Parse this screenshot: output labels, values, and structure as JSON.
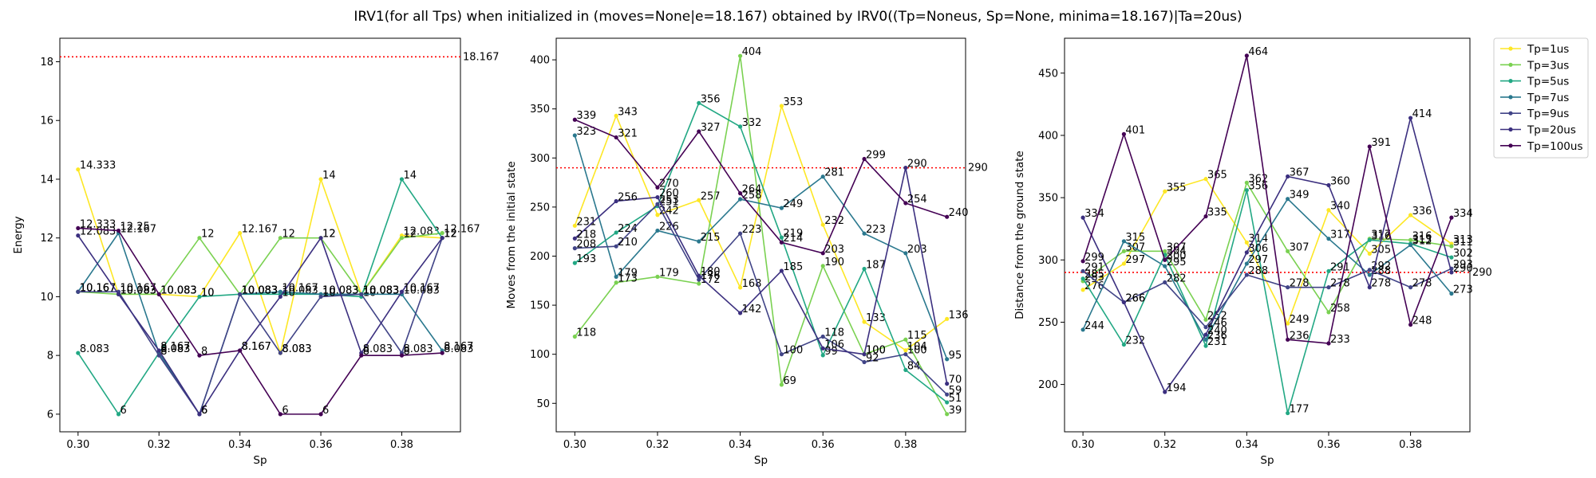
{
  "figure": {
    "title": "IRV1(for all Tps) when initialized in (moves=None|e=18.167) obtained by IRV0((Tp=Noneus, Sp=None, minima=18.167)|Ta=20us)"
  },
  "legend": {
    "placement": "outside-right",
    "entries": [
      "Tp=1us",
      "Tp=3us",
      "Tp=5us",
      "Tp=7us",
      "Tp=9us",
      "Tp=20us",
      "Tp=100us"
    ]
  },
  "colors": {
    "Tp=1us": "#fde725",
    "Tp=3us": "#7ad151",
    "Tp=5us": "#22a884",
    "Tp=7us": "#2a788e",
    "Tp=9us": "#414487",
    "Tp=20us": "#3b2f7f",
    "Tp=100us": "#440154",
    "reference_line": "#ff0000"
  },
  "chart_data": [
    {
      "type": "line",
      "title": "",
      "xlabel": "Sp",
      "ylabel": "Energy",
      "x": [
        0.3,
        0.31,
        0.32,
        0.33,
        0.34,
        0.35,
        0.36,
        0.37,
        0.38,
        0.39
      ],
      "xlim": [
        0.2955,
        0.3945
      ],
      "ylim": [
        5.4,
        18.8
      ],
      "xticks": [
        "0.30",
        "0.32",
        "0.34",
        "0.36",
        "0.38"
      ],
      "yticks": [
        "6",
        "8",
        "10",
        "12",
        "14",
        "16",
        "18"
      ],
      "reference_line": {
        "value": 18.167,
        "label": "18.167",
        "style": "dotted"
      },
      "grid": false,
      "series": [
        {
          "name": "Tp=1us",
          "values": [
            14.333,
            10.083,
            10.083,
            10.0,
            12.167,
            8.083,
            14.0,
            10.083,
            12.083,
            12.0
          ]
        },
        {
          "name": "Tp=3us",
          "values": [
            10.167,
            10.083,
            10.083,
            12.0,
            10.083,
            12.0,
            12.0,
            10.083,
            12.0,
            12.167
          ]
        },
        {
          "name": "Tp=5us",
          "values": [
            8.083,
            6.0,
            8.083,
            10.0,
            10.083,
            10.083,
            10.083,
            10.0,
            14.0,
            12.0
          ]
        },
        {
          "name": "Tp=7us",
          "values": [
            10.167,
            12.167,
            8.083,
            6.0,
            10.083,
            10.167,
            10.083,
            10.083,
            10.083,
            8.167
          ]
        },
        {
          "name": "Tp=9us",
          "values": [
            10.167,
            10.167,
            8.0,
            6.0,
            10.083,
            8.083,
            10.0,
            10.083,
            8.083,
            12.0
          ]
        },
        {
          "name": "Tp=20us",
          "values": [
            12.083,
            10.083,
            8.167,
            6.0,
            8.167,
            10.0,
            12.0,
            8.083,
            10.167,
            12.0
          ]
        },
        {
          "name": "Tp=100us",
          "values": [
            12.333,
            12.25,
            10.083,
            8.0,
            8.167,
            6.0,
            6.0,
            8.0,
            8.0,
            8.083
          ]
        }
      ]
    },
    {
      "type": "line",
      "title": "",
      "xlabel": "Sp",
      "ylabel": "Moves from the initial state",
      "x": [
        0.3,
        0.31,
        0.32,
        0.33,
        0.34,
        0.35,
        0.36,
        0.37,
        0.38,
        0.39
      ],
      "xlim": [
        0.2955,
        0.3945
      ],
      "ylim": [
        21,
        422
      ],
      "xticks": [
        "0.30",
        "0.32",
        "0.34",
        "0.36",
        "0.38"
      ],
      "yticks": [
        "50",
        "100",
        "150",
        "200",
        "250",
        "300",
        "350",
        "400"
      ],
      "reference_line": {
        "value": 290,
        "label": "290",
        "style": "dotted"
      },
      "grid": false,
      "series": [
        {
          "name": "Tp=1us",
          "values": [
            231,
            343,
            242,
            257,
            168,
            353,
            232,
            133,
            104,
            136
          ]
        },
        {
          "name": "Tp=3us",
          "values": [
            118,
            173,
            179,
            172,
            404,
            69,
            190,
            100,
            115,
            39
          ]
        },
        {
          "name": "Tp=5us",
          "values": [
            193,
            224,
            251,
            356,
            332,
            219,
            99,
            187,
            84,
            51
          ]
        },
        {
          "name": "Tp=7us",
          "values": [
            323,
            179,
            226,
            215,
            258,
            249,
            281,
            223,
            203,
            95
          ]
        },
        {
          "name": "Tp=9us",
          "values": [
            208,
            210,
            253,
            176,
            223,
            100,
            118,
            92,
            100,
            59
          ]
        },
        {
          "name": "Tp=20us",
          "values": [
            218,
            256,
            260,
            180,
            142,
            185,
            106,
            100,
            290,
            70
          ]
        },
        {
          "name": "Tp=100us",
          "values": [
            339,
            321,
            270,
            327,
            264,
            214,
            203,
            299,
            254,
            240
          ]
        }
      ]
    },
    {
      "type": "line",
      "title": "",
      "xlabel": "Sp",
      "ylabel": "Distance from the ground state",
      "x": [
        0.3,
        0.31,
        0.32,
        0.33,
        0.34,
        0.35,
        0.36,
        0.37,
        0.38,
        0.39
      ],
      "xlim": [
        0.2955,
        0.3945
      ],
      "ylim": [
        162,
        478
      ],
      "xticks": [
        "0.30",
        "0.32",
        "0.34",
        "0.36",
        "0.38"
      ],
      "yticks": [
        "200",
        "250",
        "300",
        "350",
        "400",
        "450"
      ],
      "reference_line": {
        "value": 290,
        "label": "290",
        "style": "dotted"
      },
      "grid": false,
      "series": [
        {
          "name": "Tp=1us",
          "values": [
            276,
            297,
            355,
            365,
            314,
            249,
            340,
            305,
            336,
            313
          ]
        },
        {
          "name": "Tp=3us",
          "values": [
            283,
            307,
            307,
            252,
            362,
            307,
            258,
            317,
            316,
            311
          ]
        },
        {
          "name": "Tp=5us",
          "values": [
            285,
            232,
            304,
            231,
            356,
            177,
            291,
            316,
            313,
            302
          ]
        },
        {
          "name": "Tp=7us",
          "values": [
            244,
            315,
            295,
            236,
            297,
            349,
            317,
            288,
            312,
            273
          ]
        },
        {
          "name": "Tp=9us",
          "values": [
            291,
            266,
            282,
            246,
            288,
            278,
            278,
            292,
            278,
            293
          ]
        },
        {
          "name": "Tp=20us",
          "values": [
            334,
            266,
            194,
            240,
            306,
            367,
            360,
            278,
            414,
            290
          ]
        },
        {
          "name": "Tp=100us",
          "values": [
            299,
            401,
            300,
            335,
            464,
            236,
            233,
            391,
            248,
            334
          ]
        }
      ]
    }
  ]
}
